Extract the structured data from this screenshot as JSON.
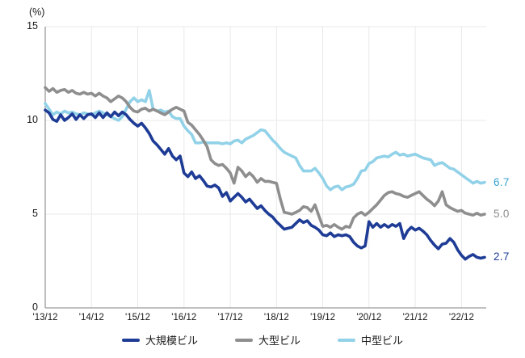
{
  "chart_data": {
    "type": "line",
    "title": "",
    "unit_label": "(%)",
    "xlabel": "",
    "ylabel": "(%)",
    "ylim": [
      0,
      15
    ],
    "yticks": [
      15,
      10,
      5,
      0
    ],
    "xticklabels": [
      "'13/12",
      "'14/12",
      "'15/12",
      "'16/12",
      "'17/12",
      "'18/12",
      "'19/12",
      "'20/12",
      "'21/12",
      "'22/12"
    ],
    "months_per_tick": 12,
    "grid": true,
    "legend_position": "bottom",
    "axis_color": "#9a9a9a",
    "grid_color": "#e9e9e9",
    "series": [
      {
        "name": "大規模ビル",
        "color": "#1e3c96",
        "label_color": "#1e3c96",
        "end_label": "2.7",
        "values": [
          10.55,
          10.4,
          10.05,
          9.95,
          10.3,
          10.0,
          10.15,
          10.35,
          10.05,
          10.3,
          10.1,
          10.3,
          10.35,
          10.15,
          10.4,
          10.15,
          10.4,
          10.2,
          10.45,
          10.25,
          10.45,
          10.3,
          10.05,
          9.85,
          9.7,
          9.85,
          9.6,
          9.3,
          8.9,
          8.7,
          8.45,
          8.2,
          8.5,
          8.1,
          7.9,
          8.1,
          7.2,
          7.0,
          7.25,
          6.9,
          7.05,
          6.8,
          6.5,
          6.45,
          6.55,
          6.4,
          5.95,
          6.15,
          5.7,
          5.9,
          6.1,
          5.9,
          5.65,
          5.8,
          5.55,
          5.3,
          5.45,
          5.2,
          5.0,
          4.85,
          4.6,
          4.4,
          4.2,
          4.25,
          4.3,
          4.5,
          4.7,
          4.55,
          4.65,
          4.4,
          4.3,
          4.15,
          3.9,
          3.85,
          4.0,
          3.8,
          3.9,
          3.85,
          3.9,
          3.8,
          3.5,
          3.3,
          3.2,
          3.3,
          4.6,
          4.3,
          4.5,
          4.3,
          4.45,
          4.3,
          4.45,
          4.35,
          4.5,
          3.7,
          4.1,
          4.3,
          4.15,
          4.25,
          4.1,
          3.9,
          3.6,
          3.35,
          3.15,
          3.4,
          3.45,
          3.7,
          3.5,
          3.1,
          2.8,
          2.6,
          2.75,
          2.85,
          2.7,
          2.65,
          2.7
        ]
      },
      {
        "name": "大型ビル",
        "color": "#8e8e8e",
        "label_color": "#8c8c8c",
        "end_label": "5.0",
        "values": [
          11.75,
          11.55,
          11.7,
          11.5,
          11.6,
          11.65,
          11.5,
          11.6,
          11.45,
          11.4,
          11.5,
          11.4,
          11.45,
          11.3,
          11.45,
          11.3,
          11.2,
          11.0,
          11.15,
          11.3,
          11.2,
          11.0,
          10.7,
          10.5,
          10.45,
          10.6,
          10.65,
          10.5,
          10.6,
          10.5,
          10.4,
          10.3,
          10.45,
          10.6,
          10.7,
          10.6,
          10.5,
          9.9,
          9.75,
          9.5,
          9.25,
          8.95,
          8.6,
          7.9,
          7.7,
          7.6,
          7.65,
          7.45,
          7.2,
          6.65,
          7.5,
          7.3,
          7.0,
          7.2,
          7.0,
          6.7,
          6.9,
          6.75,
          6.75,
          6.7,
          6.65,
          5.8,
          5.1,
          5.05,
          5.0,
          5.1,
          5.2,
          5.4,
          5.35,
          5.15,
          5.5,
          4.9,
          4.35,
          4.4,
          4.3,
          4.45,
          4.3,
          4.2,
          4.35,
          4.3,
          4.8,
          5.0,
          5.1,
          4.95,
          5.1,
          5.3,
          5.5,
          5.75,
          6.0,
          6.15,
          6.2,
          6.1,
          6.05,
          5.95,
          5.9,
          6.0,
          6.1,
          6.2,
          6.0,
          5.8,
          5.65,
          5.45,
          5.7,
          6.2,
          5.5,
          5.35,
          5.25,
          5.15,
          5.2,
          5.05,
          5.0,
          4.95,
          5.05,
          4.95,
          5.0
        ]
      },
      {
        "name": "中型ビル",
        "color": "#92d2e8",
        "label_color": "#36a0cc",
        "end_label": "6.7",
        "values": [
          10.9,
          10.6,
          10.3,
          10.45,
          10.35,
          10.5,
          10.4,
          10.45,
          10.35,
          10.3,
          10.4,
          10.35,
          10.3,
          10.4,
          10.5,
          10.4,
          10.3,
          10.2,
          10.1,
          10.0,
          10.2,
          10.6,
          11.0,
          11.2,
          11.0,
          11.1,
          11.0,
          11.6,
          10.6,
          10.5,
          10.55,
          10.45,
          10.5,
          10.2,
          10.1,
          10.1,
          9.7,
          9.45,
          9.25,
          8.8,
          8.8,
          8.85,
          8.8,
          8.8,
          8.8,
          8.8,
          8.75,
          8.8,
          8.75,
          8.9,
          8.95,
          8.8,
          9.0,
          9.1,
          9.2,
          9.35,
          9.5,
          9.45,
          9.2,
          8.95,
          8.75,
          8.5,
          8.3,
          8.2,
          8.1,
          8.0,
          7.6,
          7.3,
          7.3,
          7.3,
          7.45,
          7.2,
          6.9,
          6.5,
          6.3,
          6.45,
          6.5,
          6.3,
          6.45,
          6.5,
          6.6,
          6.9,
          7.3,
          7.35,
          7.7,
          7.8,
          8.0,
          8.05,
          8.1,
          8.05,
          8.2,
          8.3,
          8.15,
          8.2,
          8.1,
          8.15,
          8.2,
          8.1,
          8.0,
          7.95,
          7.9,
          7.6,
          7.7,
          7.75,
          7.6,
          7.45,
          7.4,
          7.25,
          7.1,
          6.95,
          6.8,
          6.65,
          6.75,
          6.65,
          6.7
        ]
      }
    ]
  }
}
